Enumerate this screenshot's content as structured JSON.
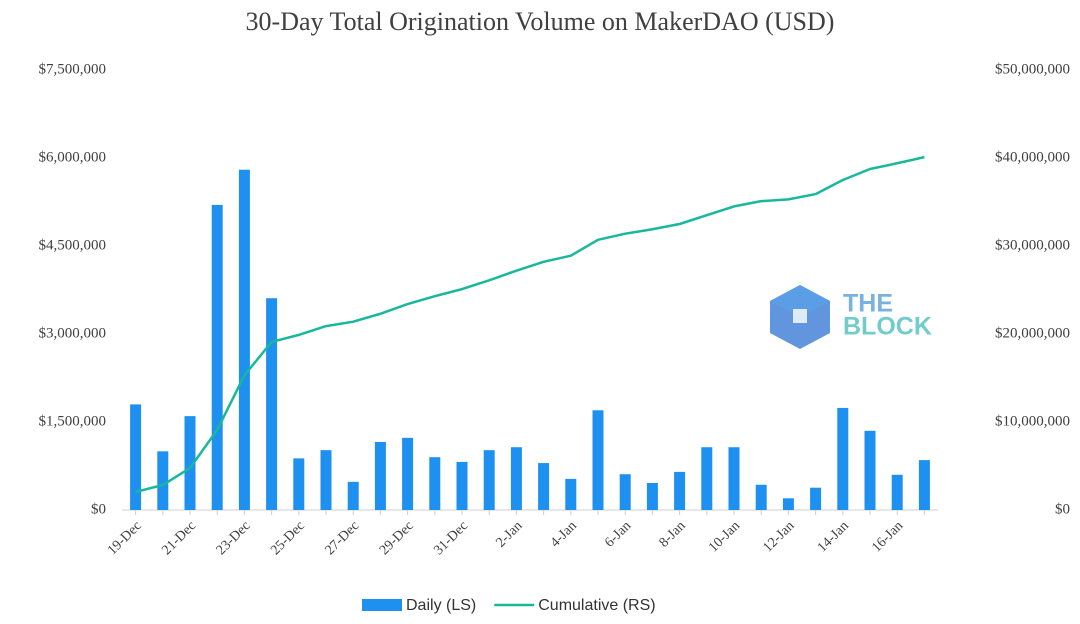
{
  "chart_data": {
    "type": "bar-line",
    "title": "30-Day Total Origination Volume on MakerDAO (USD)",
    "watermark": [
      "THE",
      "BLOCK"
    ],
    "categories": [
      "19-Dec",
      null,
      "21-Dec",
      null,
      "23-Dec",
      null,
      "25-Dec",
      null,
      "27-Dec",
      null,
      "29-Dec",
      null,
      "31-Dec",
      null,
      "2-Jan",
      null,
      "4-Jan",
      null,
      "6-Jan",
      null,
      "8-Jan",
      null,
      "10-Jan",
      null,
      "12-Jan",
      null,
      "14-Jan",
      null,
      "16-Jan",
      null
    ],
    "series": [
      {
        "name": "Daily (LS)",
        "type": "bar",
        "color": "#1e90f0",
        "axis": "y",
        "values": [
          1800000,
          1000000,
          1600000,
          5200000,
          5800000,
          3610000,
          880000,
          1020000,
          480000,
          1160000,
          1230000,
          900000,
          820000,
          1020000,
          1070000,
          800000,
          530000,
          1700000,
          610000,
          460000,
          650000,
          1070000,
          1070000,
          430000,
          200000,
          380000,
          1740000,
          1350000,
          600000,
          850000
        ]
      },
      {
        "name": "Cumulative (RS)",
        "type": "line",
        "color": "#19b89a",
        "axis": "y2",
        "values": [
          2050000,
          2840000,
          4770000,
          9100000,
          15300000,
          19100000,
          19900000,
          20900000,
          21400000,
          22300000,
          23400000,
          24300000,
          25100000,
          26100000,
          27200000,
          28200000,
          28900000,
          30700000,
          31400000,
          31900000,
          32500000,
          33500000,
          34500000,
          35100000,
          35300000,
          35900000,
          37500000,
          38750000,
          39400000,
          40100000
        ]
      }
    ],
    "ylim": [
      0,
      7500000
    ],
    "yticks": [
      {
        "value": 0,
        "label": "$0"
      },
      {
        "value": 1500000,
        "label": "$1,500,000"
      },
      {
        "value": 3000000,
        "label": "$3,000,000"
      },
      {
        "value": 4500000,
        "label": "$4,500,000"
      },
      {
        "value": 6000000,
        "label": "$6,000,000"
      },
      {
        "value": 7500000,
        "label": "$7,500,000"
      }
    ],
    "y2lim": [
      0,
      50000000
    ],
    "y2ticks": [
      {
        "value": 0,
        "label": "$0"
      },
      {
        "value": 10000000,
        "label": "$10,000,000"
      },
      {
        "value": 20000000,
        "label": "$20,000,000"
      },
      {
        "value": 30000000,
        "label": "$30,000,000"
      },
      {
        "value": 40000000,
        "label": "$40,000,000"
      },
      {
        "value": 50000000,
        "label": "$50,000,000"
      }
    ],
    "grid": false,
    "legend": "bottom"
  }
}
